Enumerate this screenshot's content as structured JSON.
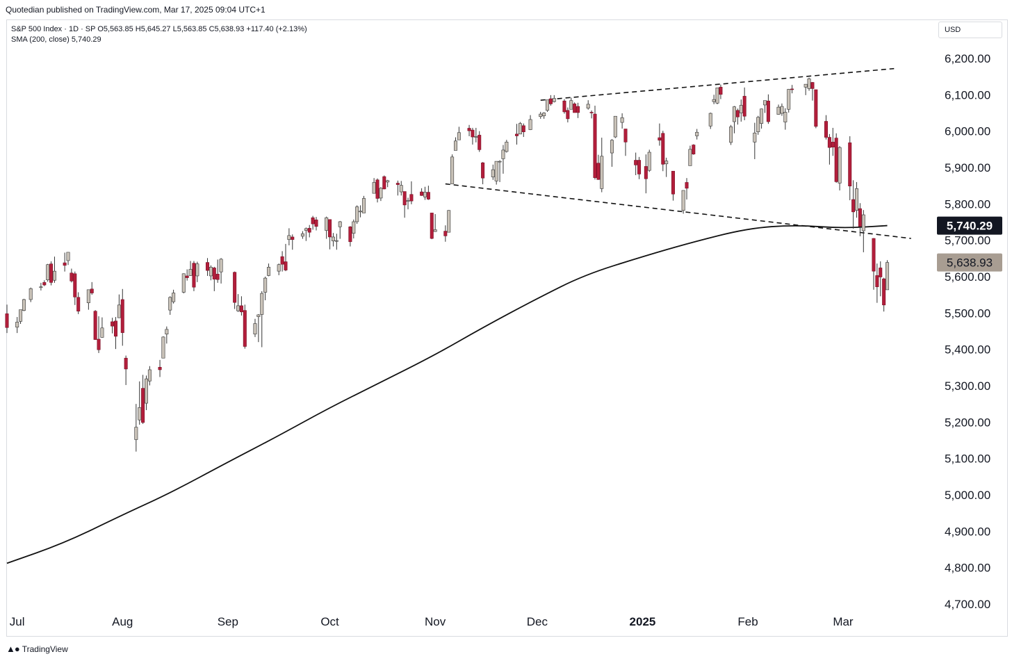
{
  "publisher": "Quotedian published on TradingView.com, Mar 17, 2025 09:04 UTC+1",
  "legend": {
    "line1": "S&P 500 Index · 1D · SP  O5,563.85  H5,645.27  L5,563.85  C5,638.93  +117.40 (+2.13%)",
    "line2": "SMA (200, close)  5,740.29"
  },
  "currency": "USD",
  "brand": "TradingView",
  "colors": {
    "up": "#b3aba0",
    "down": "#b21e3b",
    "wick": "#333333",
    "sma": "#111111",
    "sma_label_bg": "#131722",
    "close_label_bg": "#a89d92"
  },
  "chart_data": {
    "type": "candlestick",
    "title": "S&P 500 Index · 1D · SP",
    "ylim": [
      4650,
      6250
    ],
    "yticks": [
      4700,
      4800,
      4900,
      5000,
      5100,
      5200,
      5300,
      5400,
      5500,
      5600,
      5700,
      5800,
      5900,
      6000,
      6100,
      6200
    ],
    "ytick_labels": [
      "4,700.00",
      "4,800.00",
      "4,900.00",
      "5,000.00",
      "5,100.00",
      "5,200.00",
      "5,300.00",
      "5,400.00",
      "5,500.00",
      "5,600.00",
      "5,700.00",
      "5,800.00",
      "5,900.00",
      "6,000.00",
      "6,100.00",
      "6,200.00"
    ],
    "xtick_labels": [
      "Jul",
      "Aug",
      "Sep",
      "Oct",
      "Nov",
      "Dec",
      "2025",
      "Feb",
      "Mar"
    ],
    "xtick_dates": [
      "2024-07-01",
      "2024-08-01",
      "2024-09-01",
      "2024-10-01",
      "2024-11-01",
      "2024-12-01",
      "2025-01-01",
      "2025-02-01",
      "2025-03-01"
    ],
    "x_start": "2024-06-28",
    "x_end": "2025-03-28",
    "sma": {
      "name": "SMA (200, close)",
      "last": "5,740.29",
      "points": [
        [
          "2024-06-28",
          4812
        ],
        [
          "2024-07-15",
          4868
        ],
        [
          "2024-08-01",
          4945
        ],
        [
          "2024-08-15",
          5005
        ],
        [
          "2024-09-01",
          5090
        ],
        [
          "2024-09-15",
          5158
        ],
        [
          "2024-10-01",
          5240
        ],
        [
          "2024-10-15",
          5305
        ],
        [
          "2024-11-01",
          5385
        ],
        [
          "2024-11-15",
          5460
        ],
        [
          "2024-12-01",
          5540
        ],
        [
          "2024-12-15",
          5605
        ],
        [
          "2025-01-01",
          5655
        ],
        [
          "2025-01-15",
          5693
        ],
        [
          "2025-02-01",
          5733
        ],
        [
          "2025-02-15",
          5742
        ],
        [
          "2025-03-01",
          5733
        ],
        [
          "2025-03-14",
          5740.29
        ]
      ]
    },
    "close_label": "5,638.93",
    "close_value": 5638.93,
    "trendlines": [
      {
        "from": [
          "2024-12-02",
          6085
        ],
        "to": [
          "2025-03-16",
          6172
        ]
      },
      {
        "from": [
          "2024-11-04",
          5855
        ],
        "to": [
          "2025-03-21",
          5705
        ]
      }
    ],
    "candles": [
      [
        "2024-06-28",
        5498,
        5523,
        5445,
        5460
      ],
      [
        "2024-07-01",
        5461,
        5489,
        5445,
        5475
      ],
      [
        "2024-07-02",
        5477,
        5509,
        5470,
        5509
      ],
      [
        "2024-07-03",
        5507,
        5539,
        5505,
        5537
      ],
      [
        "2024-07-05",
        5537,
        5570,
        5530,
        5567
      ],
      [
        "2024-07-08",
        5572,
        5583,
        5562,
        5572
      ],
      [
        "2024-07-09",
        5584,
        5590,
        5574,
        5577
      ],
      [
        "2024-07-10",
        5591,
        5635,
        5586,
        5633
      ],
      [
        "2024-07-11",
        5635,
        5642,
        5576,
        5584
      ],
      [
        "2024-07-12",
        5590,
        5655,
        5583,
        5615
      ],
      [
        "2024-07-15",
        5638,
        5666,
        5614,
        5631
      ],
      [
        "2024-07-16",
        5644,
        5667,
        5632,
        5667
      ],
      [
        "2024-07-17",
        5610,
        5622,
        5584,
        5588
      ],
      [
        "2024-07-18",
        5608,
        5614,
        5522,
        5544
      ],
      [
        "2024-07-19",
        5543,
        5557,
        5497,
        5505
      ],
      [
        "2024-07-22",
        5528,
        5555,
        5509,
        5564
      ],
      [
        "2024-07-23",
        5566,
        5585,
        5550,
        5555
      ],
      [
        "2024-07-24",
        5505,
        5508,
        5426,
        5427
      ],
      [
        "2024-07-25",
        5428,
        5491,
        5390,
        5399
      ],
      [
        "2024-07-26",
        5433,
        5488,
        5432,
        5459
      ],
      [
        "2024-07-29",
        5476,
        5487,
        5444,
        5464
      ],
      [
        "2024-07-30",
        5478,
        5489,
        5401,
        5436
      ],
      [
        "2024-07-31",
        5487,
        5551,
        5486,
        5522
      ],
      [
        "2024-08-01",
        5537,
        5566,
        5410,
        5446
      ],
      [
        "2024-08-02",
        5376,
        5383,
        5302,
        5346
      ],
      [
        "2024-08-05",
        5152,
        5250,
        5119,
        5186
      ],
      [
        "2024-08-06",
        5206,
        5312,
        5193,
        5240
      ],
      [
        "2024-08-07",
        5293,
        5330,
        5195,
        5199
      ],
      [
        "2024-08-08",
        5252,
        5328,
        5233,
        5319
      ],
      [
        "2024-08-09",
        5313,
        5354,
        5301,
        5344
      ],
      [
        "2024-08-12",
        5351,
        5371,
        5324,
        5344
      ],
      [
        "2024-08-13",
        5376,
        5436,
        5376,
        5434
      ],
      [
        "2024-08-14",
        5442,
        5463,
        5416,
        5455
      ],
      [
        "2024-08-15",
        5508,
        5546,
        5495,
        5543
      ],
      [
        "2024-08-16",
        5531,
        5564,
        5526,
        5555
      ],
      [
        "2024-08-19",
        5557,
        5609,
        5554,
        5608
      ],
      [
        "2024-08-20",
        5602,
        5620,
        5589,
        5597
      ],
      [
        "2024-08-21",
        5603,
        5643,
        5602,
        5620
      ],
      [
        "2024-08-22",
        5637,
        5643,
        5560,
        5571
      ],
      [
        "2024-08-23",
        5602,
        5641,
        5585,
        5635
      ],
      [
        "2024-08-26",
        5639,
        5651,
        5602,
        5617
      ],
      [
        "2024-08-27",
        5602,
        5631,
        5590,
        5626
      ],
      [
        "2024-08-28",
        5624,
        5627,
        5560,
        5593
      ],
      [
        "2024-08-29",
        5607,
        5647,
        5583,
        5592
      ],
      [
        "2024-08-30",
        5613,
        5651,
        5581,
        5648
      ],
      [
        "2024-09-03",
        5612,
        5614,
        5511,
        5529
      ],
      [
        "2024-09-04",
        5506,
        5552,
        5503,
        5520
      ],
      [
        "2024-09-05",
        5520,
        5546,
        5493,
        5503
      ],
      [
        "2024-09-06",
        5507,
        5523,
        5402,
        5408
      ],
      [
        "2024-09-09",
        5442,
        5484,
        5434,
        5471
      ],
      [
        "2024-09-10",
        5490,
        5497,
        5420,
        5495
      ],
      [
        "2024-09-11",
        5496,
        5560,
        5406,
        5554
      ],
      [
        "2024-09-12",
        5557,
        5600,
        5535,
        5596
      ],
      [
        "2024-09-13",
        5603,
        5636,
        5601,
        5626
      ],
      [
        "2024-09-16",
        5615,
        5636,
        5604,
        5633
      ],
      [
        "2024-09-17",
        5655,
        5670,
        5614,
        5634
      ],
      [
        "2024-09-18",
        5641,
        5690,
        5615,
        5618
      ],
      [
        "2024-09-19",
        5702,
        5733,
        5686,
        5713
      ],
      [
        "2024-09-20",
        5709,
        5716,
        5674,
        5702
      ],
      [
        "2024-09-23",
        5711,
        5725,
        5704,
        5718
      ],
      [
        "2024-09-24",
        5727,
        5735,
        5698,
        5732
      ],
      [
        "2024-09-25",
        5733,
        5742,
        5708,
        5722
      ],
      [
        "2024-09-26",
        5762,
        5767,
        5729,
        5745
      ],
      [
        "2024-09-27",
        5756,
        5764,
        5727,
        5738
      ],
      [
        "2024-09-30",
        5727,
        5765,
        5704,
        5762
      ],
      [
        "2024-10-01",
        5757,
        5757,
        5675,
        5709
      ],
      [
        "2024-10-02",
        5698,
        5720,
        5683,
        5709
      ],
      [
        "2024-10-03",
        5698,
        5718,
        5674,
        5699
      ],
      [
        "2024-10-04",
        5737,
        5753,
        5704,
        5751
      ],
      [
        "2024-10-07",
        5737,
        5739,
        5683,
        5696
      ],
      [
        "2024-10-08",
        5719,
        5757,
        5705,
        5751
      ],
      [
        "2024-10-09",
        5751,
        5796,
        5745,
        5792
      ],
      [
        "2024-10-10",
        5778,
        5796,
        5763,
        5780
      ],
      [
        "2024-10-11",
        5775,
        5822,
        5775,
        5815
      ],
      [
        "2024-10-14",
        5829,
        5871,
        5829,
        5859
      ],
      [
        "2024-10-15",
        5866,
        5870,
        5804,
        5815
      ],
      [
        "2024-10-16",
        5816,
        5846,
        5808,
        5843
      ],
      [
        "2024-10-17",
        5875,
        5878,
        5840,
        5841
      ],
      [
        "2024-10-18",
        5860,
        5866,
        5846,
        5864
      ],
      [
        "2024-10-21",
        5857,
        5864,
        5823,
        5853
      ],
      [
        "2024-10-22",
        5833,
        5863,
        5823,
        5851
      ],
      [
        "2024-10-23",
        5834,
        5834,
        5762,
        5797
      ],
      [
        "2024-10-24",
        5809,
        5817,
        5785,
        5809
      ],
      [
        "2024-10-25",
        5826,
        5862,
        5799,
        5808
      ],
      [
        "2024-10-28",
        5833,
        5843,
        5822,
        5823
      ],
      [
        "2024-10-29",
        5819,
        5847,
        5811,
        5832
      ],
      [
        "2024-10-30",
        5832,
        5850,
        5811,
        5813
      ],
      [
        "2024-10-31",
        5775,
        5775,
        5703,
        5705
      ],
      [
        "2024-11-01",
        5724,
        5772,
        5723,
        5729
      ],
      [
        "2024-11-04",
        5725,
        5741,
        5696,
        5712
      ],
      [
        "2024-11-05",
        5722,
        5783,
        5722,
        5782
      ],
      [
        "2024-11-06",
        5855,
        5936,
        5855,
        5929
      ],
      [
        "2024-11-07",
        5947,
        5983,
        5947,
        5973
      ],
      [
        "2024-11-08",
        5976,
        6012,
        5976,
        5996
      ],
      [
        "2024-11-11",
        6008,
        6017,
        5986,
        6001
      ],
      [
        "2024-11-12",
        6003,
        6009,
        5963,
        5984
      ],
      [
        "2024-11-13",
        5985,
        6009,
        5969,
        5985
      ],
      [
        "2024-11-14",
        5989,
        6000,
        5943,
        5949
      ],
      [
        "2024-11-15",
        5913,
        5915,
        5854,
        5871
      ],
      [
        "2024-11-18",
        5874,
        5908,
        5866,
        5894
      ],
      [
        "2024-11-19",
        5863,
        5917,
        5853,
        5917
      ],
      [
        "2024-11-20",
        5917,
        5920,
        5860,
        5917
      ],
      [
        "2024-11-21",
        5924,
        5962,
        5883,
        5948
      ],
      [
        "2024-11-22",
        5944,
        5976,
        5941,
        5970
      ],
      [
        "2024-11-25",
        5992,
        6020,
        5963,
        5987
      ],
      [
        "2024-11-26",
        5992,
        6025,
        5992,
        6021
      ],
      [
        "2024-11-27",
        6015,
        6021,
        5984,
        5998
      ],
      [
        "2024-11-29",
        6004,
        6044,
        6003,
        6032
      ],
      [
        "2024-12-02",
        6040,
        6053,
        6034,
        6047
      ],
      [
        "2024-12-03",
        6042,
        6052,
        6034,
        6050
      ],
      [
        "2024-12-04",
        6057,
        6086,
        6053,
        6086
      ],
      [
        "2024-12-05",
        6089,
        6099,
        6070,
        6075
      ],
      [
        "2024-12-06",
        6081,
        6099,
        6079,
        6090
      ],
      [
        "2024-12-09",
        6083,
        6088,
        6048,
        6053
      ],
      [
        "2024-12-10",
        6057,
        6065,
        6024,
        6034
      ],
      [
        "2024-12-11",
        6060,
        6092,
        6060,
        6084
      ],
      [
        "2024-12-12",
        6075,
        6079,
        6051,
        6051
      ],
      [
        "2024-12-13",
        6068,
        6078,
        6036,
        6051
      ],
      [
        "2024-12-16",
        6063,
        6085,
        6059,
        6074
      ],
      [
        "2024-12-17",
        6052,
        6057,
        6035,
        6051
      ],
      [
        "2024-12-18",
        6047,
        6070,
        5867,
        5872
      ],
      [
        "2024-12-19",
        5912,
        5935,
        5866,
        5867
      ],
      [
        "2024-12-20",
        5842,
        5982,
        5832,
        5931
      ],
      [
        "2024-12-23",
        5940,
        5978,
        5902,
        5975
      ],
      [
        "2024-12-24",
        5984,
        6041,
        5981,
        6041
      ],
      [
        "2024-12-26",
        6024,
        6049,
        6007,
        6037
      ],
      [
        "2024-12-27",
        6006,
        6006,
        5932,
        5970
      ],
      [
        "2024-12-30",
        5920,
        5941,
        5879,
        5907
      ],
      [
        "2024-12-31",
        5920,
        5929,
        5868,
        5882
      ],
      [
        "2025-01-02",
        5903,
        5936,
        5829,
        5869
      ],
      [
        "2025-01-03",
        5892,
        5949,
        5888,
        5942
      ],
      [
        "2025-01-06",
        5982,
        6021,
        5960,
        5975
      ],
      [
        "2025-01-07",
        5994,
        6001,
        5890,
        5909
      ],
      [
        "2025-01-08",
        5910,
        5927,
        5874,
        5918
      ],
      [
        "2025-01-10",
        5890,
        5890,
        5809,
        5827
      ],
      [
        "2025-01-13",
        5782,
        5837,
        5773,
        5837
      ],
      [
        "2025-01-14",
        5859,
        5871,
        5812,
        5843
      ],
      [
        "2025-01-15",
        5905,
        5960,
        5905,
        5950
      ],
      [
        "2025-01-16",
        5962,
        5964,
        5935,
        5937
      ],
      [
        "2025-01-17",
        5987,
        6006,
        5977,
        5997
      ],
      [
        "2025-01-21",
        6014,
        6051,
        6006,
        6049
      ],
      [
        "2025-01-22",
        6081,
        6100,
        6074,
        6087
      ],
      [
        "2025-01-23",
        6077,
        6118,
        6074,
        6119
      ],
      [
        "2025-01-24",
        6121,
        6128,
        6088,
        6101
      ],
      [
        "2025-01-27",
        5969,
        6017,
        5962,
        6012
      ],
      [
        "2025-01-28",
        6026,
        6069,
        5994,
        6067
      ],
      [
        "2025-01-29",
        6057,
        6062,
        6018,
        6039
      ],
      [
        "2025-01-30",
        6050,
        6087,
        6026,
        6071
      ],
      [
        "2025-01-31",
        6096,
        6120,
        6030,
        6041
      ],
      [
        "2025-02-03",
        5970,
        6023,
        5923,
        5995
      ],
      [
        "2025-02-04",
        5998,
        6042,
        5990,
        6038
      ],
      [
        "2025-02-05",
        6021,
        6062,
        6007,
        6061
      ],
      [
        "2025-02-06",
        6072,
        6084,
        6050,
        6084
      ],
      [
        "2025-02-07",
        6083,
        6101,
        6020,
        6026
      ],
      [
        "2025-02-10",
        6046,
        6073,
        6045,
        6066
      ],
      [
        "2025-02-11",
        6049,
        6076,
        6042,
        6068
      ],
      [
        "2025-02-12",
        6025,
        6063,
        6004,
        6052
      ],
      [
        "2025-02-13",
        6060,
        6116,
        6051,
        6115
      ],
      [
        "2025-02-14",
        6116,
        6127,
        6104,
        6115
      ],
      [
        "2025-02-18",
        6121,
        6129,
        6099,
        6129
      ],
      [
        "2025-02-19",
        6117,
        6147,
        6111,
        6144
      ],
      [
        "2025-02-20",
        6134,
        6135,
        6084,
        6117
      ],
      [
        "2025-02-21",
        6114,
        6114,
        6008,
        6013
      ],
      [
        "2025-02-24",
        6027,
        6044,
        5977,
        5983
      ],
      [
        "2025-02-25",
        5983,
        5992,
        5908,
        5955
      ],
      [
        "2025-02-26",
        5970,
        6009,
        5932,
        5956
      ],
      [
        "2025-02-27",
        5981,
        5994,
        5858,
        5861
      ],
      [
        "2025-02-28",
        5857,
        5959,
        5837,
        5955
      ],
      [
        "2025-03-03",
        5968,
        5986,
        5810,
        5849
      ],
      [
        "2025-03-04",
        5812,
        5865,
        5732,
        5778
      ],
      [
        "2025-03-05",
        5782,
        5860,
        5762,
        5842
      ],
      [
        "2025-03-06",
        5787,
        5802,
        5711,
        5738
      ],
      [
        "2025-03-07",
        5726,
        5783,
        5667,
        5770
      ],
      [
        "2025-03-10",
        5705,
        5706,
        5564,
        5615
      ],
      [
        "2025-03-11",
        5603,
        5636,
        5528,
        5572
      ],
      [
        "2025-03-12",
        5624,
        5642,
        5546,
        5599
      ],
      [
        "2025-03-13",
        5594,
        5597,
        5504,
        5522
      ],
      [
        "2025-03-14",
        5563.85,
        5645.27,
        5563.85,
        5638.93
      ]
    ]
  }
}
